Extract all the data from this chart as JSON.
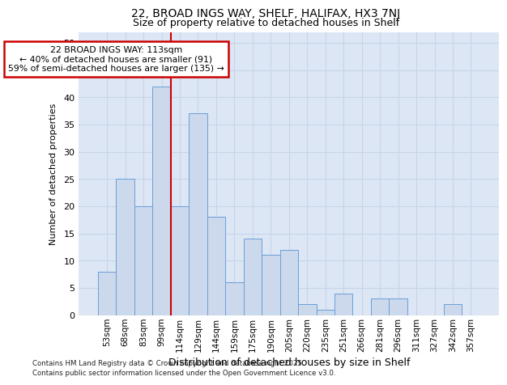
{
  "title1": "22, BROAD INGS WAY, SHELF, HALIFAX, HX3 7NJ",
  "title2": "Size of property relative to detached houses in Shelf",
  "xlabel": "Distribution of detached houses by size in Shelf",
  "ylabel": "Number of detached properties",
  "categories": [
    "53sqm",
    "68sqm",
    "83sqm",
    "99sqm",
    "114sqm",
    "129sqm",
    "144sqm",
    "159sqm",
    "175sqm",
    "190sqm",
    "205sqm",
    "220sqm",
    "235sqm",
    "251sqm",
    "266sqm",
    "281sqm",
    "296sqm",
    "311sqm",
    "327sqm",
    "342sqm",
    "357sqm"
  ],
  "values": [
    8,
    25,
    20,
    42,
    20,
    37,
    18,
    6,
    14,
    11,
    12,
    2,
    1,
    4,
    0,
    3,
    3,
    0,
    0,
    2,
    0
  ],
  "bar_color": "#ccd9ec",
  "bar_edge_color": "#6a9fd8",
  "grid_color": "#c8d4e8",
  "background_color": "#dce6f5",
  "annotation_box_facecolor": "#ffffff",
  "annotation_border_color": "#cc0000",
  "redline_color": "#cc0000",
  "annotation_text_line1": "22 BROAD INGS WAY: 113sqm",
  "annotation_text_line2": "← 40% of detached houses are smaller (91)",
  "annotation_text_line3": "59% of semi-detached houses are larger (135) →",
  "ylim": [
    0,
    52
  ],
  "yticks": [
    0,
    5,
    10,
    15,
    20,
    25,
    30,
    35,
    40,
    45,
    50
  ],
  "footnote1": "Contains HM Land Registry data © Crown copyright and database right 2025.",
  "footnote2": "Contains public sector information licensed under the Open Government Licence v3.0."
}
